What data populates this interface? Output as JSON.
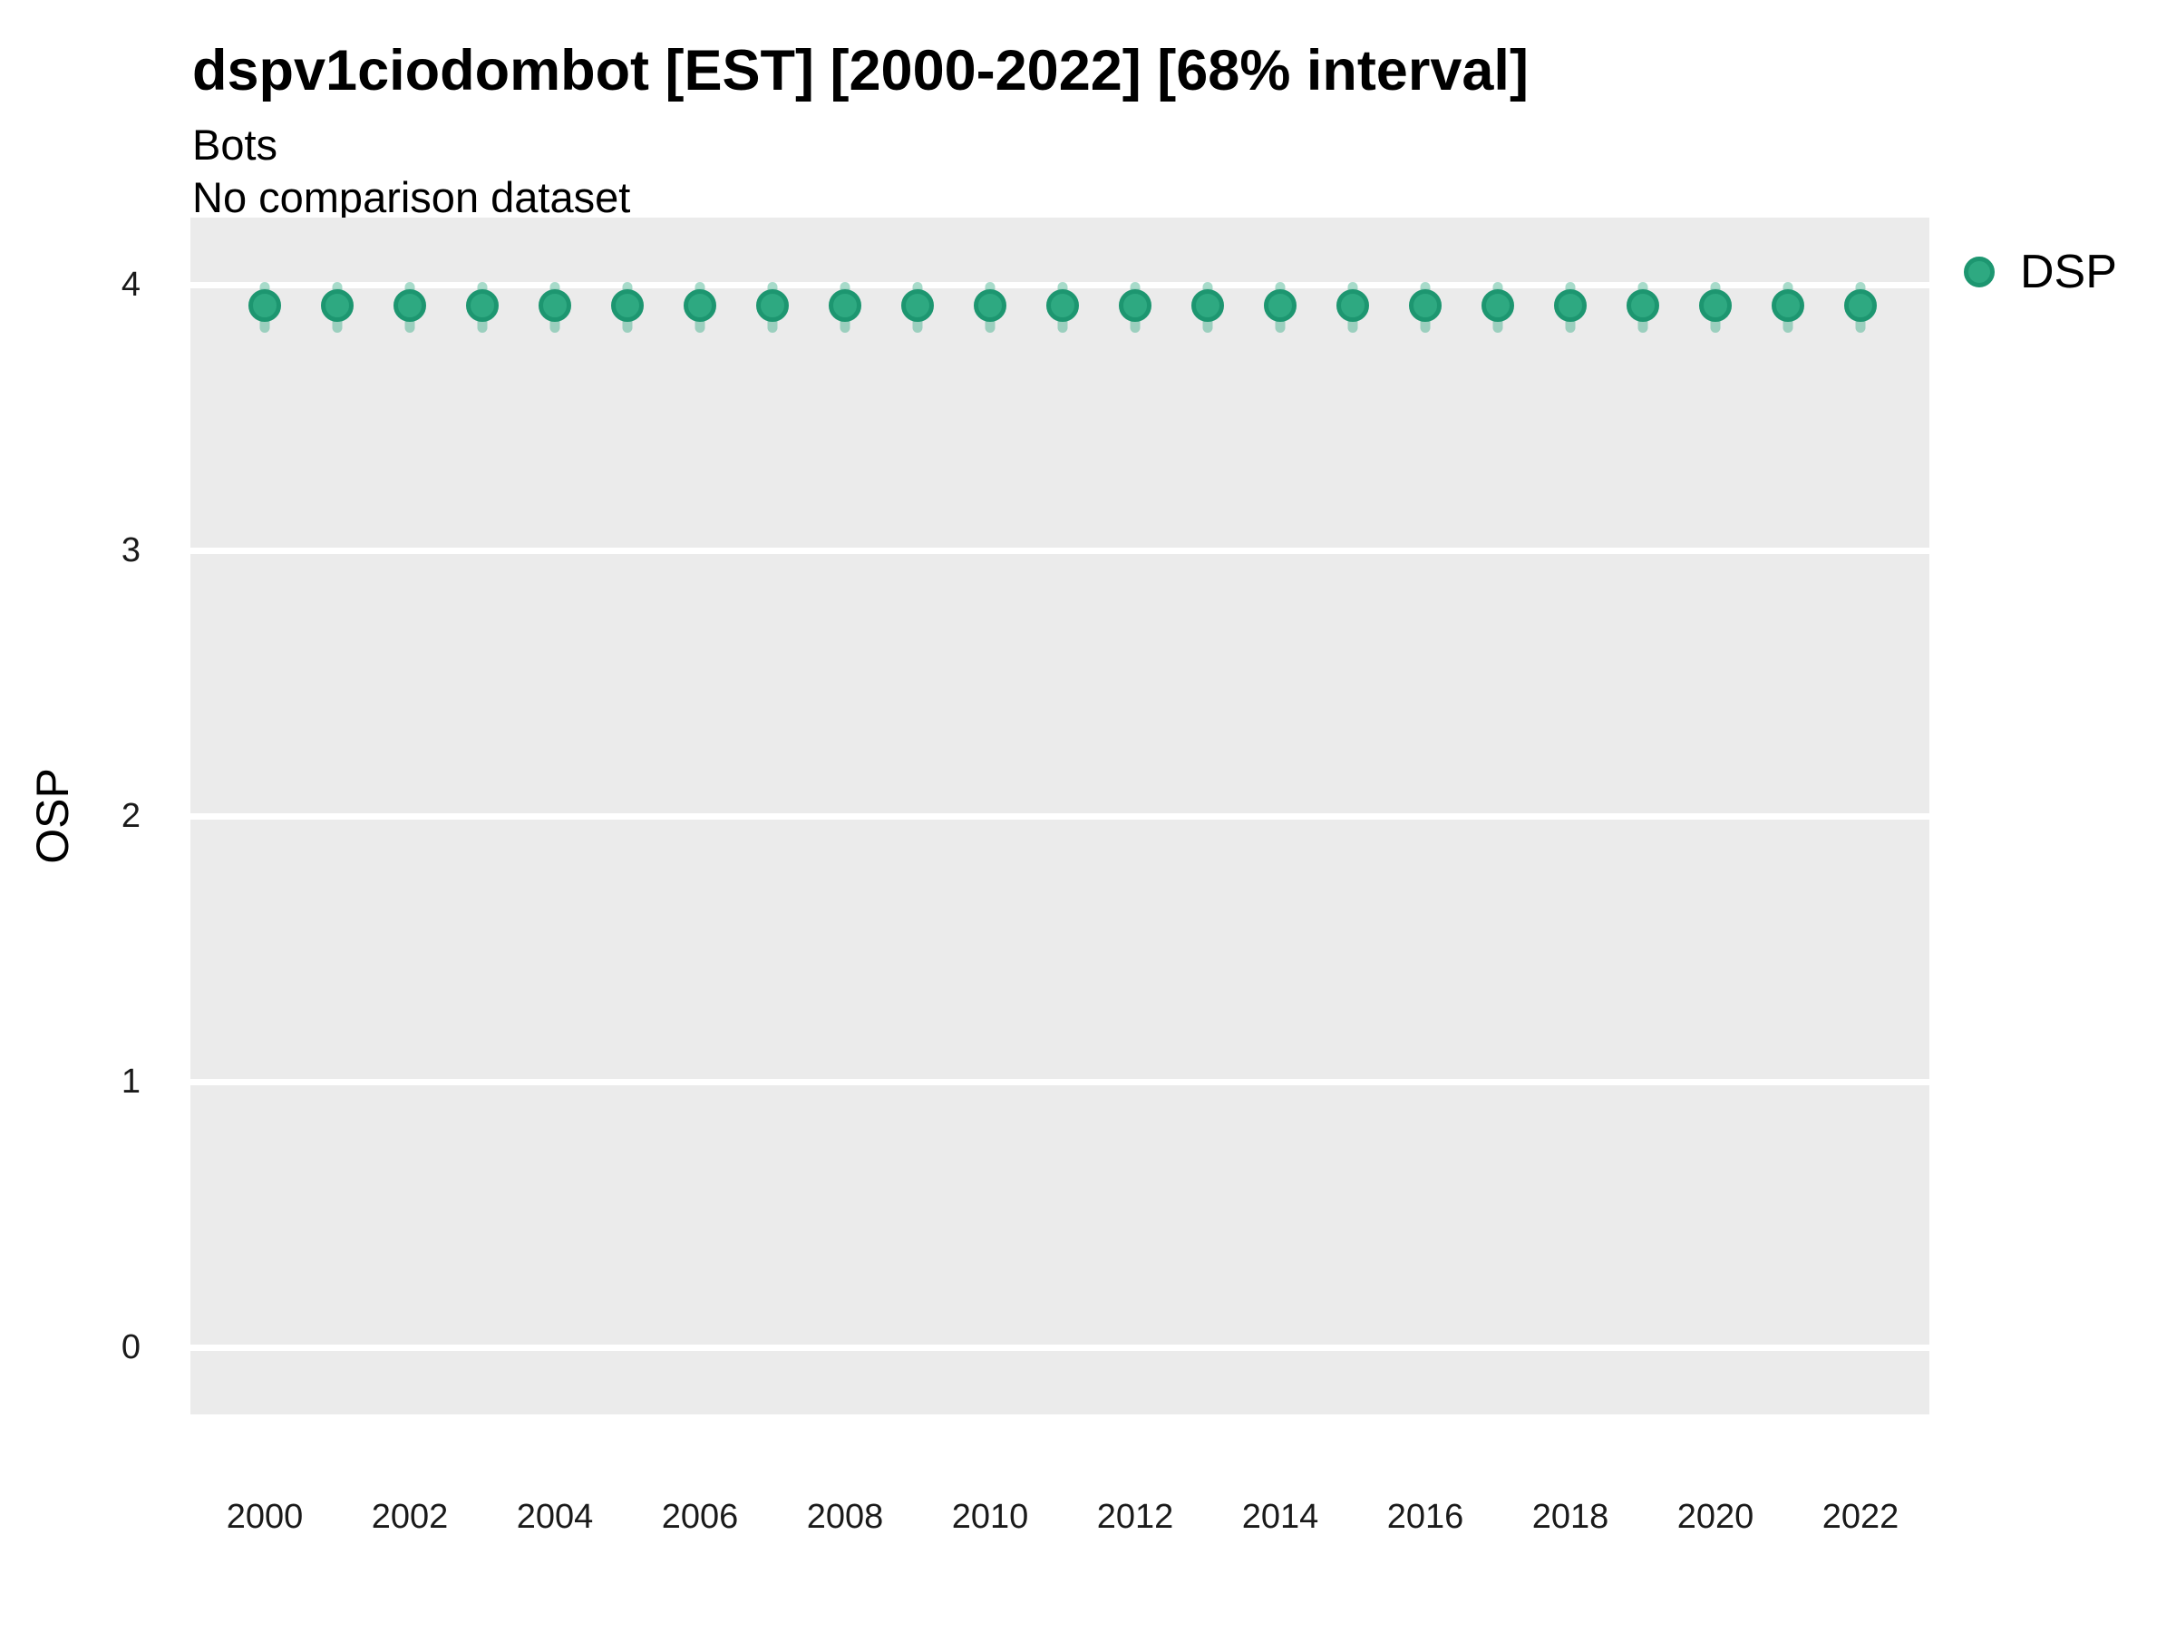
{
  "header": {
    "title": "dspv1ciodombot [EST] [2000-2022] [68% interval]",
    "subtitle1": "Bots",
    "subtitle2": "No comparison dataset"
  },
  "legend": {
    "label": "DSP"
  },
  "axes": {
    "y_title": "OSP"
  },
  "colors": {
    "point_fill": "#2ea981",
    "point_edge": "#1d9670",
    "interval_bar": "rgba(46, 169, 129, 0.42)",
    "panel_background": "#ebebeb",
    "gridline": "#ffffff",
    "text": "#000000"
  },
  "chart_data": {
    "type": "scatter",
    "title": "dspv1ciodombot [EST] [2000-2022] [68% interval]",
    "subtitle": [
      "Bots",
      "No comparison dataset"
    ],
    "xlabel": "",
    "ylabel": "OSP",
    "interval": "68%",
    "legend_position": "right-top",
    "grid": "horizontal-white-on-gray",
    "x": [
      2000,
      2001,
      2002,
      2003,
      2004,
      2005,
      2006,
      2007,
      2008,
      2009,
      2010,
      2011,
      2012,
      2013,
      2014,
      2015,
      2016,
      2017,
      2018,
      2019,
      2020,
      2021,
      2022
    ],
    "series": [
      {
        "name": "DSP",
        "values": [
          3.92,
          3.92,
          3.92,
          3.92,
          3.92,
          3.92,
          3.92,
          3.92,
          3.92,
          3.92,
          3.92,
          3.92,
          3.92,
          3.92,
          3.92,
          3.92,
          3.92,
          3.92,
          3.92,
          3.92,
          3.92,
          3.92,
          3.92
        ],
        "interval_low": [
          3.82,
          3.82,
          3.82,
          3.82,
          3.82,
          3.82,
          3.82,
          3.82,
          3.82,
          3.82,
          3.82,
          3.82,
          3.82,
          3.82,
          3.82,
          3.82,
          3.82,
          3.82,
          3.82,
          3.82,
          3.82,
          3.82,
          3.82
        ],
        "interval_high": [
          4.01,
          4.01,
          4.01,
          4.01,
          4.01,
          4.01,
          4.01,
          4.01,
          4.01,
          4.01,
          4.01,
          4.01,
          4.01,
          4.01,
          4.01,
          4.01,
          4.01,
          4.01,
          4.01,
          4.01,
          4.01,
          4.01,
          4.01
        ]
      }
    ],
    "x_tick_labels": [
      "2000",
      "2002",
      "2004",
      "2006",
      "2008",
      "2010",
      "2012",
      "2014",
      "2016",
      "2018",
      "2020",
      "2022"
    ],
    "x_tick_values": [
      2000,
      2002,
      2004,
      2006,
      2008,
      2010,
      2012,
      2014,
      2016,
      2018,
      2020,
      2022
    ],
    "y_tick_labels": [
      "0",
      "1",
      "2",
      "3",
      "4"
    ],
    "y_tick_values": [
      0,
      1,
      2,
      3,
      4
    ],
    "ylim": [
      -0.25,
      4.25
    ],
    "xlim": [
      1999,
      2023
    ]
  }
}
